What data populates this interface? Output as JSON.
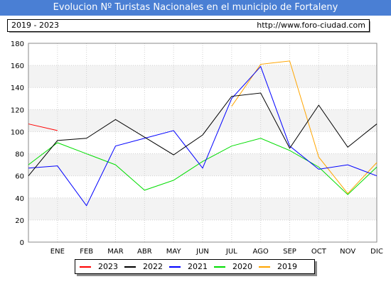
{
  "title": "Evolucion Nº Turistas Nacionales en el municipio de Fortaleny",
  "info": {
    "period": "2019 - 2023",
    "url": "http://www.foro-ciudad.com"
  },
  "chart_data": {
    "type": "line",
    "categories": [
      "ENE",
      "FEB",
      "MAR",
      "ABR",
      "MAY",
      "JUN",
      "JUL",
      "AGO",
      "SEP",
      "OCT",
      "NOV",
      "DIC"
    ],
    "ylim": [
      0,
      180
    ],
    "yticks": [
      0,
      20,
      40,
      60,
      80,
      100,
      120,
      140,
      160,
      180
    ],
    "grid": true,
    "legend_position": "bottom",
    "series": [
      {
        "name": "2023",
        "color": "#ff0000",
        "values": [
          101,
          null,
          null,
          null,
          null,
          null,
          null,
          null,
          null,
          null,
          null,
          null
        ],
        "start": 107
      },
      {
        "name": "2022",
        "color": "#000000",
        "values": [
          92,
          94,
          111,
          95,
          79,
          97,
          132,
          135,
          85,
          124,
          86,
          107
        ],
        "start": 60
      },
      {
        "name": "2021",
        "color": "#0000ff",
        "values": [
          69,
          33,
          87,
          94,
          101,
          67,
          130,
          159,
          87,
          66,
          70,
          60
        ],
        "start": 67
      },
      {
        "name": "2020",
        "color": "#00dd00",
        "values": [
          90,
          80,
          70,
          47,
          56,
          73,
          87,
          94,
          83,
          68,
          43,
          68
        ],
        "start": 70
      },
      {
        "name": "2019",
        "color": "#ffa500",
        "values": [
          null,
          null,
          null,
          null,
          null,
          null,
          123,
          161,
          164,
          77,
          44,
          72
        ],
        "start": null
      }
    ]
  }
}
